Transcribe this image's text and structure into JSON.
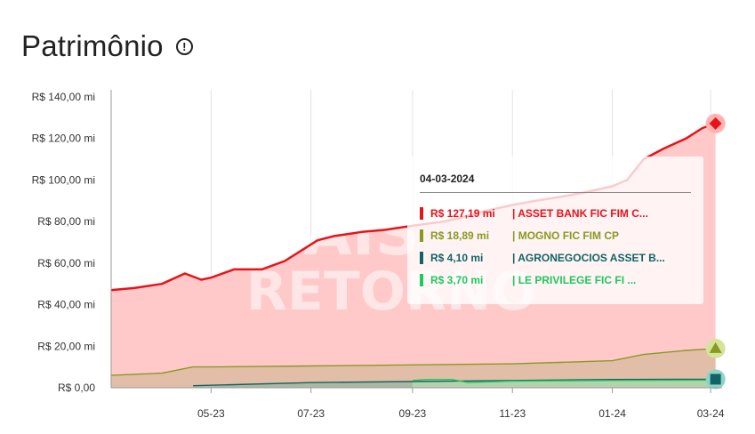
{
  "header": {
    "title": "Patrimônio",
    "info_icon": "info-circle-icon"
  },
  "colors": {
    "red": "#e8121a",
    "olive": "#889a22",
    "teal": "#116466",
    "green": "#1ec860",
    "area": "#ffc9c9"
  },
  "watermark": {
    "line1": "MAIS",
    "line2": "RETORNO"
  },
  "tooltip": {
    "date": "04-03-2024",
    "rows": [
      {
        "value": "R$ 127,19 mi",
        "name": "| ASSET BANK FIC FIM C...",
        "color": "#e8121a"
      },
      {
        "value": "R$ 18,89 mi",
        "name": "| MOGNO FIC FIM CP",
        "color": "#889a22"
      },
      {
        "value": "R$ 4,10 mi",
        "name": "| AGRONEGOCIOS ASSET B...",
        "color": "#116466"
      },
      {
        "value": "R$ 3,70 mi",
        "name": "| LE PRIVILEGE FIC FI ...",
        "color": "#1ec860"
      }
    ]
  },
  "chart_data": {
    "type": "area",
    "title": "Patrimônio",
    "ylim": [
      0,
      140
    ],
    "yticks": [
      {
        "value": 0,
        "label": "R$ 0,00"
      },
      {
        "value": 20,
        "label": "R$ 20,00 mi"
      },
      {
        "value": 40,
        "label": "R$ 40,00 mi"
      },
      {
        "value": 60,
        "label": "R$ 60,00 mi"
      },
      {
        "value": 80,
        "label": "R$ 80,00 mi"
      },
      {
        "value": 100,
        "label": "R$ 100,00 mi"
      },
      {
        "value": 120,
        "label": "R$ 120,00 mi"
      },
      {
        "value": 140,
        "label": "R$ 140,00 mi"
      }
    ],
    "xlim": [
      "2023-03-01",
      "2024-03-08"
    ],
    "xticks": [
      {
        "date": "2023-05-01",
        "label": "05-23"
      },
      {
        "date": "2023-07-01",
        "label": "07-23"
      },
      {
        "date": "2023-09-01",
        "label": "09-23"
      },
      {
        "date": "2023-11-01",
        "label": "11-23"
      },
      {
        "date": "2024-01-01",
        "label": "01-24"
      },
      {
        "date": "2024-03-01",
        "label": "03-24"
      }
    ],
    "grid": "vertical",
    "series": [
      {
        "name": "ASSET BANK FIC FIM C...",
        "color": "#e8121a",
        "marker": "diamond",
        "x": [
          "2023-03-01",
          "2023-03-15",
          "2023-04-01",
          "2023-04-15",
          "2023-04-25",
          "2023-05-01",
          "2023-05-15",
          "2023-06-01",
          "2023-06-15",
          "2023-06-25",
          "2023-07-05",
          "2023-07-15",
          "2023-08-01",
          "2023-08-15",
          "2023-09-01",
          "2023-09-10",
          "2023-09-20",
          "2023-10-01",
          "2023-10-15",
          "2023-11-01",
          "2023-11-15",
          "2023-12-01",
          "2023-12-15",
          "2024-01-01",
          "2024-01-10",
          "2024-01-20",
          "2024-02-01",
          "2024-02-15",
          "2024-02-25",
          "2024-03-04"
        ],
        "y": [
          47,
          48,
          50,
          55,
          52,
          53,
          57,
          57,
          61,
          66,
          71,
          73,
          75,
          76,
          78,
          79,
          80,
          82,
          85,
          88,
          90,
          92,
          94,
          97,
          100,
          110,
          115,
          120,
          125,
          127.19
        ]
      },
      {
        "name": "MOGNO FIC FIM CP",
        "color": "#889a22",
        "marker": "triangle",
        "x": [
          "2023-03-01",
          "2023-04-01",
          "2023-04-20",
          "2023-05-01",
          "2023-07-01",
          "2023-09-01",
          "2023-11-01",
          "2024-01-01",
          "2024-01-20",
          "2024-02-15",
          "2024-03-04"
        ],
        "y": [
          6,
          7,
          10,
          10,
          10.5,
          11,
          11.5,
          13,
          16,
          18,
          18.89
        ]
      },
      {
        "name": "AGRONEGOCIOS ASSET B...",
        "color": "#116466",
        "marker": "square",
        "x": [
          "2023-04-20",
          "2023-05-15",
          "2023-07-01",
          "2023-09-01",
          "2023-11-01",
          "2024-01-01",
          "2024-03-04"
        ],
        "y": [
          1,
          1.5,
          2.5,
          3,
          3.5,
          4,
          4.1
        ]
      },
      {
        "name": "LE PRIVILEGE FIC FI ...",
        "color": "#1ec860",
        "marker": "none",
        "x": [
          "2023-09-01",
          "2023-09-10",
          "2023-09-25",
          "2023-10-05",
          "2023-11-01",
          "2024-01-01",
          "2024-03-04"
        ],
        "y": [
          3.5,
          4,
          4,
          2.5,
          3.2,
          3.5,
          3.7
        ]
      }
    ]
  }
}
